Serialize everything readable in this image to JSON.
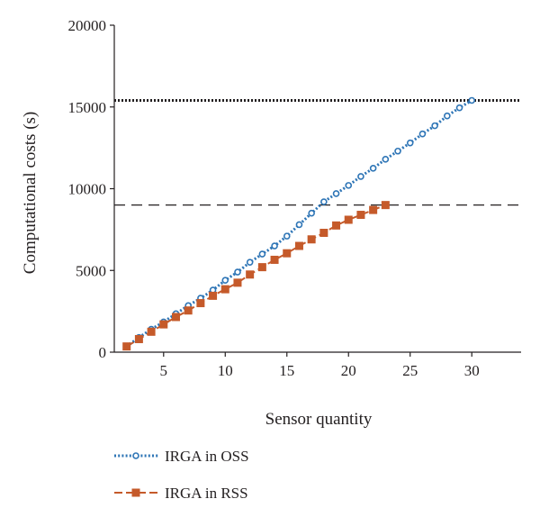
{
  "chart_data": {
    "type": "line",
    "xlabel": "Sensor quantity",
    "ylabel": "Computational costs (s)",
    "xlim": [
      1,
      34
    ],
    "ylim": [
      0,
      20000
    ],
    "x_ticks": [
      5,
      10,
      15,
      20,
      25,
      30
    ],
    "y_ticks": [
      0,
      5000,
      10000,
      15000,
      20000
    ],
    "grid": false,
    "legend_position": "bottom",
    "reference_lines": [
      {
        "y": 15400,
        "style": "dotted"
      },
      {
        "y": 9000,
        "style": "dashed"
      }
    ],
    "series": [
      {
        "name": "IRGA in OSS",
        "color": "#2e75b6",
        "marker": "circle",
        "line_style": "dotted",
        "x": [
          2,
          3,
          4,
          5,
          6,
          7,
          8,
          9,
          10,
          11,
          12,
          13,
          14,
          15,
          16,
          17,
          18,
          19,
          20,
          21,
          22,
          23,
          24,
          25,
          26,
          27,
          28,
          29,
          30
        ],
        "y": [
          350,
          900,
          1400,
          1850,
          2350,
          2850,
          3300,
          3800,
          4400,
          4900,
          5500,
          6000,
          6500,
          7100,
          7800,
          8500,
          9200,
          9700,
          10200,
          10750,
          11250,
          11800,
          12300,
          12800,
          13350,
          13850,
          14450,
          14950,
          15400
        ]
      },
      {
        "name": "IRGA in RSS",
        "color": "#c55a2a",
        "marker": "square",
        "line_style": "dashed",
        "x": [
          2,
          3,
          4,
          5,
          6,
          7,
          8,
          9,
          10,
          11,
          12,
          13,
          14,
          15,
          16,
          17,
          18,
          19,
          20,
          21,
          22,
          23
        ],
        "y": [
          350,
          800,
          1250,
          1700,
          2150,
          2550,
          3000,
          3450,
          3850,
          4250,
          4750,
          5200,
          5650,
          6050,
          6500,
          6900,
          7300,
          7750,
          8100,
          8400,
          8700,
          9000
        ]
      }
    ]
  }
}
